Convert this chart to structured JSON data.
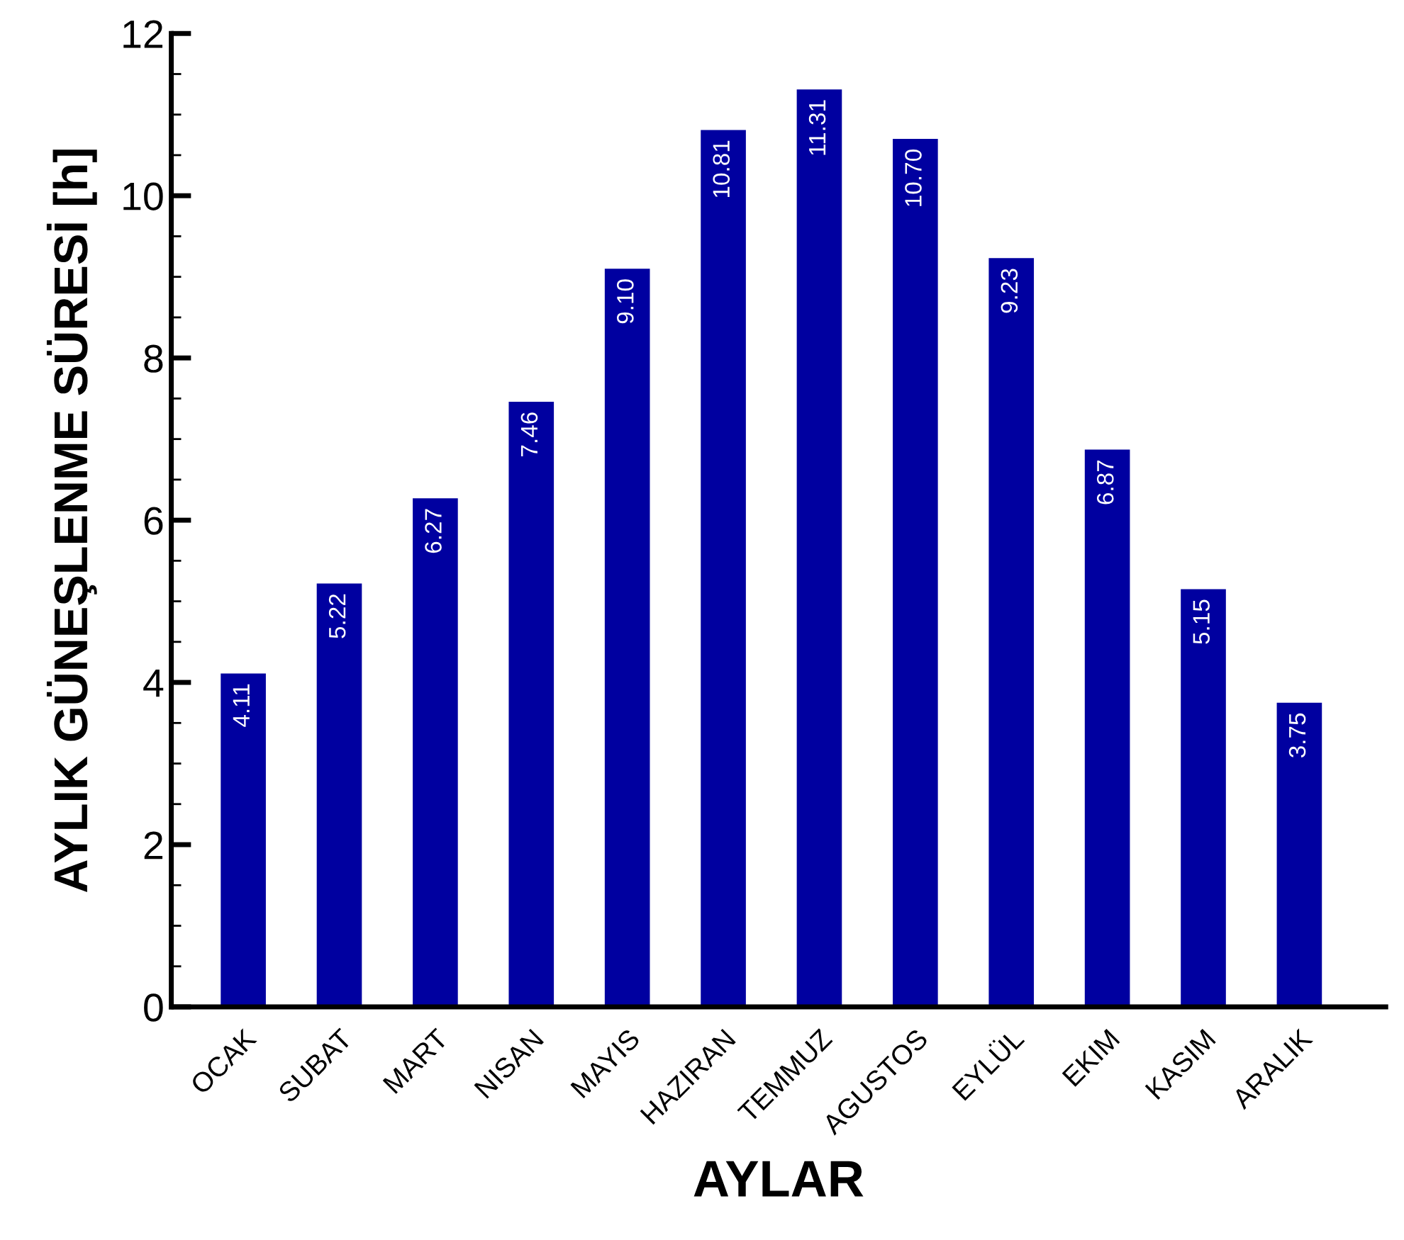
{
  "chart_data": {
    "type": "bar",
    "xlabel": "AYLAR",
    "ylabel": "AYLIK GÜNEŞLENME SÜRESİ [h]",
    "categories": [
      "OCAK",
      "SUBAT",
      "MART",
      "NISAN",
      "MAYIS",
      "HAZIRAN",
      "TEMMUZ",
      "AGUSTOS",
      "EYLÜL",
      "EKIM",
      "KASIM",
      "ARALIK"
    ],
    "values": [
      4.11,
      5.22,
      6.27,
      7.46,
      9.1,
      10.81,
      11.31,
      10.7,
      9.23,
      6.87,
      5.15,
      3.75
    ],
    "value_labels": [
      "4.11",
      "5.22",
      "6.27",
      "7.46",
      "9.10",
      "10.81",
      "11.31",
      "10.70",
      "9.23",
      "6.87",
      "5.15",
      "3.75"
    ],
    "color": "#0000a0",
    "ylim": [
      0,
      12
    ],
    "yticks": [
      0,
      2,
      4,
      6,
      8,
      10,
      12
    ],
    "grid": false,
    "legend": false
  }
}
